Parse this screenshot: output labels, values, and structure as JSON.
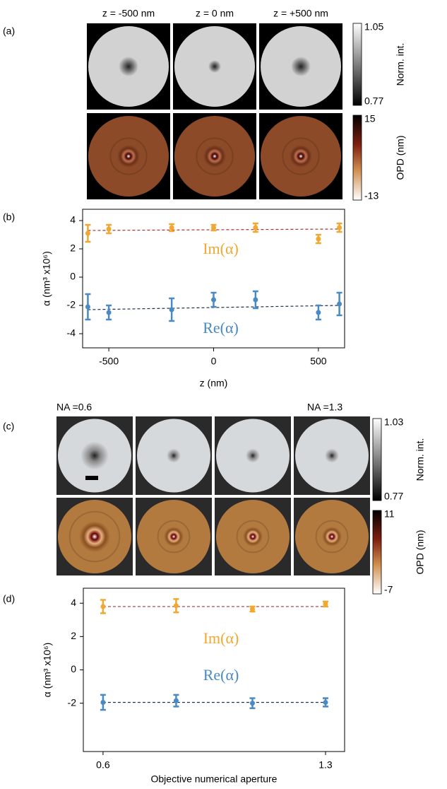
{
  "figure": {
    "panel_labels": [
      "(a)",
      "(b)",
      "(c)",
      "(d)"
    ],
    "a": {
      "titles": [
        "z = -500 nm",
        "z = 0 nm",
        "z = +500 nm"
      ],
      "colorbars": [
        {
          "label": "Norm. int.",
          "max": 1.05,
          "min": 0.77
        },
        {
          "label": "OPD (nm)",
          "max": 15,
          "min": -13
        }
      ]
    },
    "c": {
      "titles": [
        "NA =0.6",
        "NA =1.3"
      ],
      "colorbars": [
        {
          "label": "Norm. int.",
          "max": 1.03,
          "min": 0.77
        },
        {
          "label": "OPD (nm)",
          "max": 11,
          "min": -7
        }
      ]
    }
  },
  "chart_data": [
    {
      "type": "scatter",
      "xlabel": "z (nm)",
      "ylabel": "α (nm³ x10⁶)",
      "xlim": [
        -625,
        625
      ],
      "xticks": [
        -500,
        0,
        500
      ],
      "ylim": [
        -5,
        4.8
      ],
      "yticks": [
        -4,
        -2,
        0,
        2,
        4
      ],
      "x": [
        -600,
        -500,
        -200,
        0,
        200,
        500,
        600
      ],
      "series": [
        {
          "name": "Im(α)",
          "color": "#f0a830",
          "values": [
            3.1,
            3.4,
            3.5,
            3.5,
            3.5,
            2.7,
            3.5
          ],
          "errors": [
            0.6,
            0.3,
            0.25,
            0.2,
            0.3,
            0.3,
            0.3
          ]
        },
        {
          "name": "Re(α)",
          "color": "#4a8ac4",
          "values": [
            -2.1,
            -2.5,
            -2.3,
            -1.6,
            -1.6,
            -2.5,
            -1.9
          ],
          "errors": [
            0.9,
            0.5,
            0.8,
            0.5,
            0.6,
            0.5,
            0.8
          ]
        }
      ],
      "fit_x": [
        -600,
        600
      ],
      "fits": [
        {
          "color": "#b03030",
          "values": [
            3.3,
            3.4
          ]
        },
        {
          "color": "#203050",
          "values": [
            -2.3,
            -2.0
          ]
        }
      ]
    },
    {
      "type": "scatter",
      "xlabel": "Objective numerical aperture",
      "ylabel": "α (nm³ x10⁶)",
      "xlim": [
        0.538,
        1.36
      ],
      "xticks": [
        0.6,
        1.3
      ],
      "ylim": [
        -4.9,
        4.9
      ],
      "yticks": [
        -2,
        0,
        2,
        4
      ],
      "x": [
        0.6,
        0.83,
        1.07,
        1.3
      ],
      "series": [
        {
          "name": "Im(α)",
          "color": "#f0a830",
          "values": [
            3.8,
            3.85,
            3.65,
            3.95
          ],
          "errors": [
            0.4,
            0.4,
            0.15,
            0.15
          ]
        },
        {
          "name": "Re(α)",
          "color": "#4a8ac4",
          "values": [
            -1.95,
            -1.85,
            -2.0,
            -1.95
          ],
          "errors": [
            0.45,
            0.35,
            0.3,
            0.25
          ]
        }
      ],
      "fit_x": [
        0.6,
        1.3
      ],
      "fits": [
        {
          "color": "#b03030",
          "values": [
            3.8,
            3.8
          ]
        },
        {
          "color": "#203050",
          "values": [
            -1.95,
            -1.95
          ]
        }
      ]
    }
  ]
}
